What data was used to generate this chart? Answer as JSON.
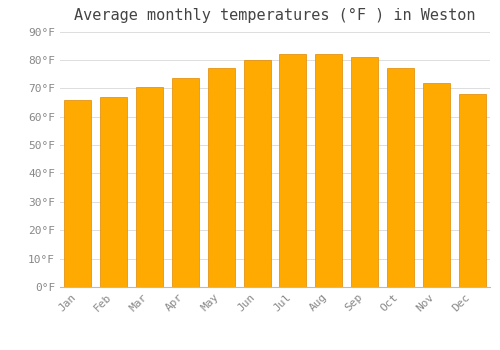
{
  "title": "Average monthly temperatures (°F ) in Weston",
  "months": [
    "Jan",
    "Feb",
    "Mar",
    "Apr",
    "May",
    "Jun",
    "Jul",
    "Aug",
    "Sep",
    "Oct",
    "Nov",
    "Dec"
  ],
  "values": [
    66,
    67,
    70.5,
    73.5,
    77,
    80,
    82,
    82,
    81,
    77,
    72,
    68
  ],
  "bar_color": "#FFAA00",
  "bar_edge_color": "#E08800",
  "ylim": [
    0,
    90
  ],
  "yticks": [
    0,
    10,
    20,
    30,
    40,
    50,
    60,
    70,
    80,
    90
  ],
  "background_color": "#FFFFFF",
  "plot_bg_color": "#FFFFFF",
  "grid_color": "#dddddd",
  "title_fontsize": 11,
  "tick_fontsize": 8,
  "tick_font_color": "#888888",
  "title_font_color": "#444444"
}
